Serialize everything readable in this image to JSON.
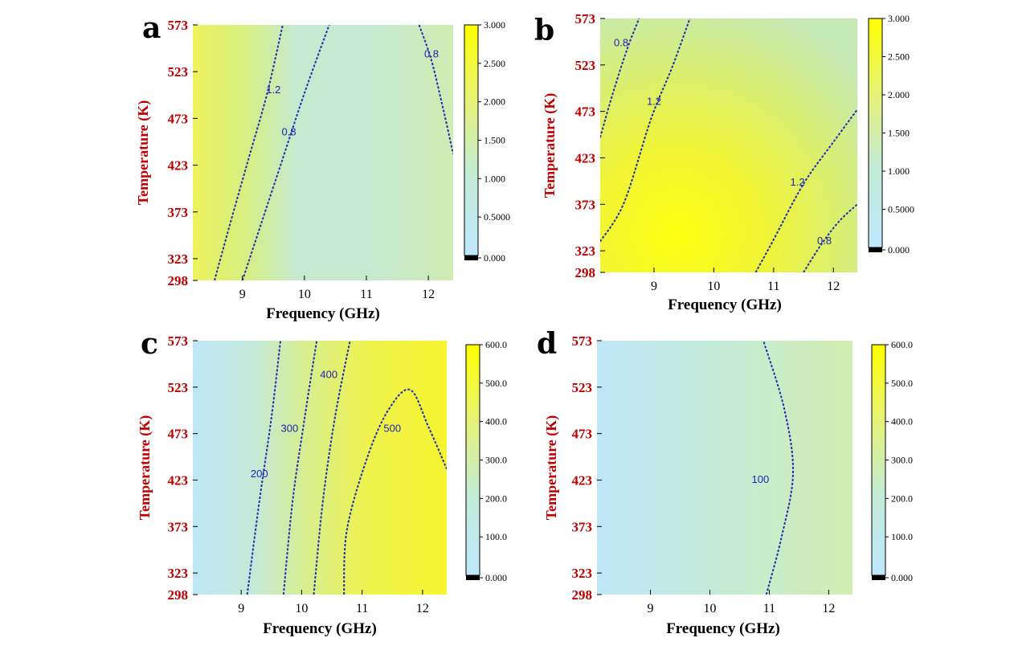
{
  "chart_data": [
    {
      "panel": "a",
      "type": "heatmap",
      "xlabel": "Frequency (GHz)",
      "ylabel": "Temperature (K)",
      "xlim": [
        8.2,
        12.4
      ],
      "ylim": [
        298,
        573
      ],
      "xticks": [
        "9",
        "10",
        "11",
        "12"
      ],
      "yticks": [
        "298",
        "323",
        "373",
        "423",
        "473",
        "523",
        "573"
      ],
      "colorbar": {
        "min": 0,
        "max": 3,
        "ticks": [
          "0.000",
          "0.5000",
          "1.000",
          "1.500",
          "2.000",
          "2.500",
          "3.000"
        ]
      },
      "contours": [
        {
          "label": "1.2",
          "label_at": [
            9.5,
            500
          ],
          "points": [
            [
              8.55,
              298
            ],
            [
              8.8,
              360
            ],
            [
              9.1,
              430
            ],
            [
              9.4,
              500
            ],
            [
              9.65,
              573
            ]
          ]
        },
        {
          "label": "0.8",
          "label_at": [
            9.75,
            455
          ],
          "points": [
            [
              9.0,
              298
            ],
            [
              9.3,
              360
            ],
            [
              9.65,
              430
            ],
            [
              10.0,
              500
            ],
            [
              10.4,
              573
            ]
          ]
        },
        {
          "label": "0.8",
          "label_at": [
            12.05,
            538
          ],
          "points": [
            [
              11.85,
              573
            ],
            [
              12.05,
              535
            ],
            [
              12.25,
              480
            ],
            [
              12.4,
              435
            ]
          ]
        }
      ]
    },
    {
      "panel": "b",
      "type": "heatmap",
      "xlabel": "Frequency (GHz)",
      "ylabel": "Temperature (K)",
      "xlim": [
        8.1,
        12.4
      ],
      "ylim": [
        298,
        573
      ],
      "xticks": [
        "9",
        "10",
        "11",
        "12"
      ],
      "yticks": [
        "298",
        "323",
        "373",
        "423",
        "473",
        "523",
        "573"
      ],
      "colorbar": {
        "min": 0,
        "max": 3,
        "ticks": [
          "0.000",
          "0.5000",
          "1.000",
          "1.500",
          "2.000",
          "2.500",
          "3.000"
        ]
      },
      "contours": [
        {
          "label": "0.8",
          "label_at": [
            8.45,
            543
          ],
          "points": [
            [
              8.1,
              445
            ],
            [
              8.3,
              490
            ],
            [
              8.55,
              540
            ],
            [
              8.75,
              573
            ]
          ]
        },
        {
          "label": "1.2",
          "label_at": [
            9.0,
            480
          ],
          "points": [
            [
              8.1,
              333
            ],
            [
              8.5,
              375
            ],
            [
              8.95,
              465
            ],
            [
              9.3,
              520
            ],
            [
              9.6,
              573
            ]
          ]
        },
        {
          "label": "1.2",
          "label_at": [
            11.4,
            393
          ],
          "points": [
            [
              10.7,
              298
            ],
            [
              11.0,
              335
            ],
            [
              11.5,
              395
            ],
            [
              12.0,
              440
            ],
            [
              12.4,
              475
            ]
          ]
        },
        {
          "label": "0.8",
          "label_at": [
            11.85,
            330
          ],
          "points": [
            [
              11.5,
              298
            ],
            [
              11.8,
              330
            ],
            [
              12.1,
              355
            ],
            [
              12.4,
              373
            ]
          ]
        }
      ]
    },
    {
      "panel": "c",
      "type": "heatmap",
      "xlabel": "Frequency (GHz)",
      "ylabel": "Temperature (K)",
      "xlim": [
        8.2,
        12.4
      ],
      "ylim": [
        298,
        573
      ],
      "xticks": [
        "9",
        "10",
        "11",
        "12"
      ],
      "yticks": [
        "298",
        "323",
        "373",
        "423",
        "473",
        "523",
        "573"
      ],
      "colorbar": {
        "min": 0,
        "max": 600,
        "ticks": [
          "0.000",
          "100.0",
          "200.0",
          "300.0",
          "400.0",
          "500.0",
          "600.0"
        ]
      },
      "contours": [
        {
          "label": "200",
          "label_at": [
            9.3,
            426
          ],
          "points": [
            [
              9.1,
              298
            ],
            [
              9.3,
              400
            ],
            [
              9.5,
              490
            ],
            [
              9.65,
              573
            ]
          ]
        },
        {
          "label": "300",
          "label_at": [
            9.8,
            475
          ],
          "points": [
            [
              9.7,
              298
            ],
            [
              9.85,
              400
            ],
            [
              10.05,
              490
            ],
            [
              10.25,
              573
            ]
          ]
        },
        {
          "label": "400",
          "label_at": [
            10.45,
            533
          ],
          "points": [
            [
              10.2,
              298
            ],
            [
              10.35,
              400
            ],
            [
              10.55,
              490
            ],
            [
              10.8,
              573
            ]
          ]
        },
        {
          "label": "500",
          "label_at": [
            11.5,
            475
          ],
          "points": [
            [
              10.7,
              298
            ],
            [
              10.75,
              370
            ],
            [
              11.1,
              450
            ],
            [
              11.45,
              500
            ],
            [
              11.8,
              520
            ],
            [
              12.1,
              480
            ],
            [
              12.4,
              435
            ]
          ]
        }
      ]
    },
    {
      "panel": "d",
      "type": "heatmap",
      "xlabel": "Frequency (GHz)",
      "ylabel": "Temperature (K)",
      "xlim": [
        8.1,
        12.4
      ],
      "ylim": [
        298,
        573
      ],
      "xticks": [
        "9",
        "10",
        "11",
        "12"
      ],
      "yticks": [
        "298",
        "323",
        "373",
        "423",
        "473",
        "523",
        "573"
      ],
      "colorbar": {
        "min": 0,
        "max": 600,
        "ticks": [
          "0.000",
          "100.0",
          "200.0",
          "300.0",
          "400.0",
          "500.0",
          "600.0"
        ]
      },
      "contours": [
        {
          "label": "100",
          "label_at": [
            10.85,
            420
          ],
          "points": [
            [
              10.95,
              298
            ],
            [
              11.2,
              360
            ],
            [
              11.4,
              430
            ],
            [
              11.25,
              500
            ],
            [
              10.9,
              573
            ]
          ]
        }
      ]
    }
  ]
}
